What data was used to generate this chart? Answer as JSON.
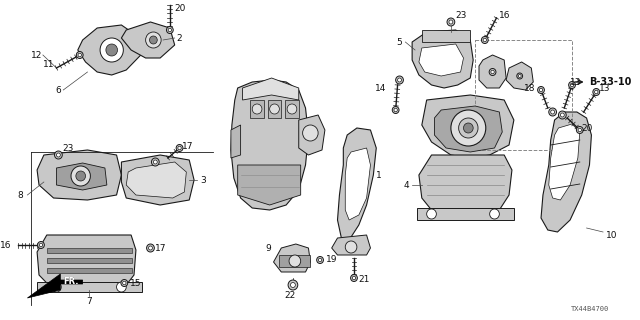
{
  "background_color": "#ffffff",
  "diagram_code": "TX44B4700",
  "ref_note": "B-33-10",
  "fig_width": 6.4,
  "fig_height": 3.2,
  "dpi": 100,
  "line_color": "#1a1a1a",
  "text_color": "#111111",
  "label_fontsize": 6.5,
  "gray_fill": "#c8c8c8",
  "dark_fill": "#888888",
  "light_fill": "#e0e0e0"
}
